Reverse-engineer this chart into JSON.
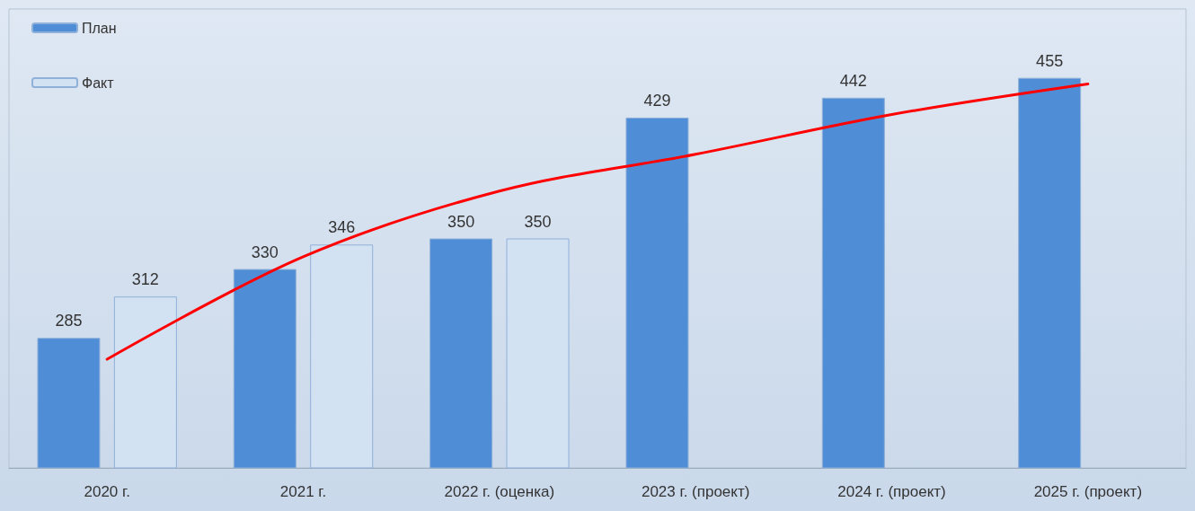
{
  "chart_data": {
    "type": "bar",
    "categories": [
      "2020 г.",
      "2021 г.",
      "2022 г. (оценка)",
      "2023 г. (проект)",
      "2024 г. (проект)",
      "2025 г. (проект)"
    ],
    "series": [
      {
        "name": "План",
        "color": "#4f8ed6",
        "values": [
          285,
          330,
          350,
          429,
          442,
          455
        ],
        "value_labels": [
          "285",
          "330",
          "350",
          "429",
          "442",
          "455"
        ]
      },
      {
        "name": "Факт",
        "color": "#d3e2f3",
        "values": [
          312,
          346,
          350,
          null,
          null,
          null
        ],
        "value_labels": [
          "312",
          "346",
          "350",
          null,
          null,
          null
        ]
      },
      {
        "type": "line",
        "color": "#ff0000",
        "values": [
          271,
          338,
          381,
          405,
          431,
          451
        ]
      }
    ],
    "ylim": [
      200,
      500
    ],
    "tick_labels": "x",
    "legend": "top left",
    "marker": "none"
  }
}
